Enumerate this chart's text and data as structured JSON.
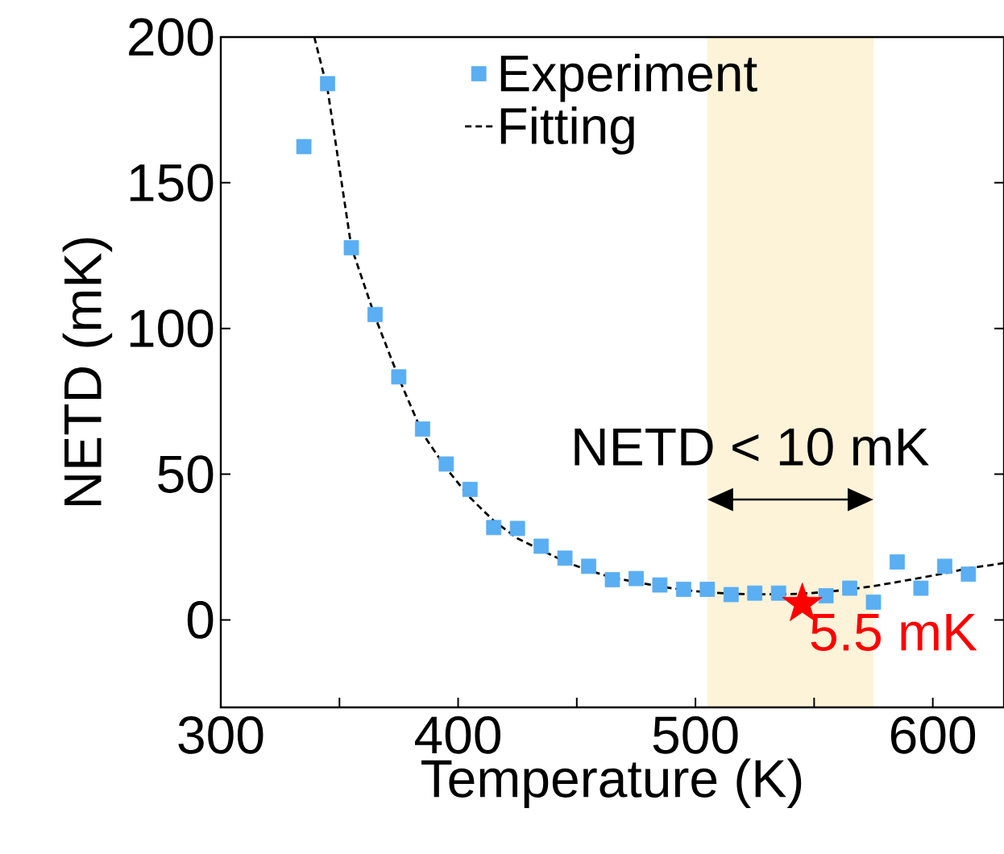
{
  "chart_data": {
    "type": "scatter",
    "xlabel": "Temperature (K)",
    "ylabel": "NETD (mK)",
    "xlim": [
      300,
      630
    ],
    "ylim": [
      -30,
      200
    ],
    "xticks": [
      300,
      {
        "value": 350,
        "label": null
      },
      400,
      {
        "value": 450,
        "label": null
      },
      500,
      {
        "value": 550,
        "label": null
      },
      600
    ],
    "yticks": [
      0,
      50,
      100,
      150,
      200
    ],
    "legend": "top",
    "bands": [
      {
        "axis": "x",
        "from": 505,
        "to": 575,
        "label": "NETD < 10 mK",
        "color": "#fdf3d9"
      }
    ],
    "series": [
      {
        "name": "Experiment",
        "marker": "square",
        "color": "#5aaef2",
        "x": [
          335,
          345,
          355,
          365,
          375,
          385,
          395,
          405,
          415,
          425,
          435,
          445,
          455,
          465,
          475,
          485,
          495,
          505,
          515,
          525,
          535,
          555,
          565,
          575,
          585,
          595,
          605,
          615
        ],
        "values": [
          162.4,
          184,
          127.7,
          104.8,
          83.4,
          65.5,
          53.5,
          44.8,
          31.7,
          31.4,
          25.3,
          21.2,
          18.4,
          13.8,
          14.2,
          12,
          10.5,
          10.5,
          8.7,
          9.2,
          9.2,
          8.3,
          10.9,
          6.1,
          19.9,
          10.9,
          18.4,
          15.7
        ]
      },
      {
        "name": "Fitting",
        "type": "line",
        "line_style": "dashed",
        "color": "#000000",
        "x": [
          339.4,
          345,
          355,
          365,
          375,
          385,
          395,
          405,
          415,
          425,
          435,
          445,
          455,
          465,
          475,
          485,
          495,
          505,
          515,
          525,
          535,
          545,
          555,
          565,
          575,
          585,
          595,
          605,
          615,
          630
        ],
        "values": [
          200,
          182,
          128,
          104,
          83,
          64,
          52,
          42,
          34,
          28,
          24,
          20,
          17,
          14.5,
          13,
          11.5,
          10.3,
          9.5,
          9,
          8.8,
          8.8,
          9,
          9.6,
          10.5,
          11.6,
          13,
          14.5,
          16,
          17.7,
          19.5
        ]
      },
      {
        "marker": "star",
        "color": "#ff0000",
        "x": [
          545
        ],
        "values": [
          5.5
        ],
        "value_labels": [
          "5.5 mK"
        ]
      }
    ]
  }
}
